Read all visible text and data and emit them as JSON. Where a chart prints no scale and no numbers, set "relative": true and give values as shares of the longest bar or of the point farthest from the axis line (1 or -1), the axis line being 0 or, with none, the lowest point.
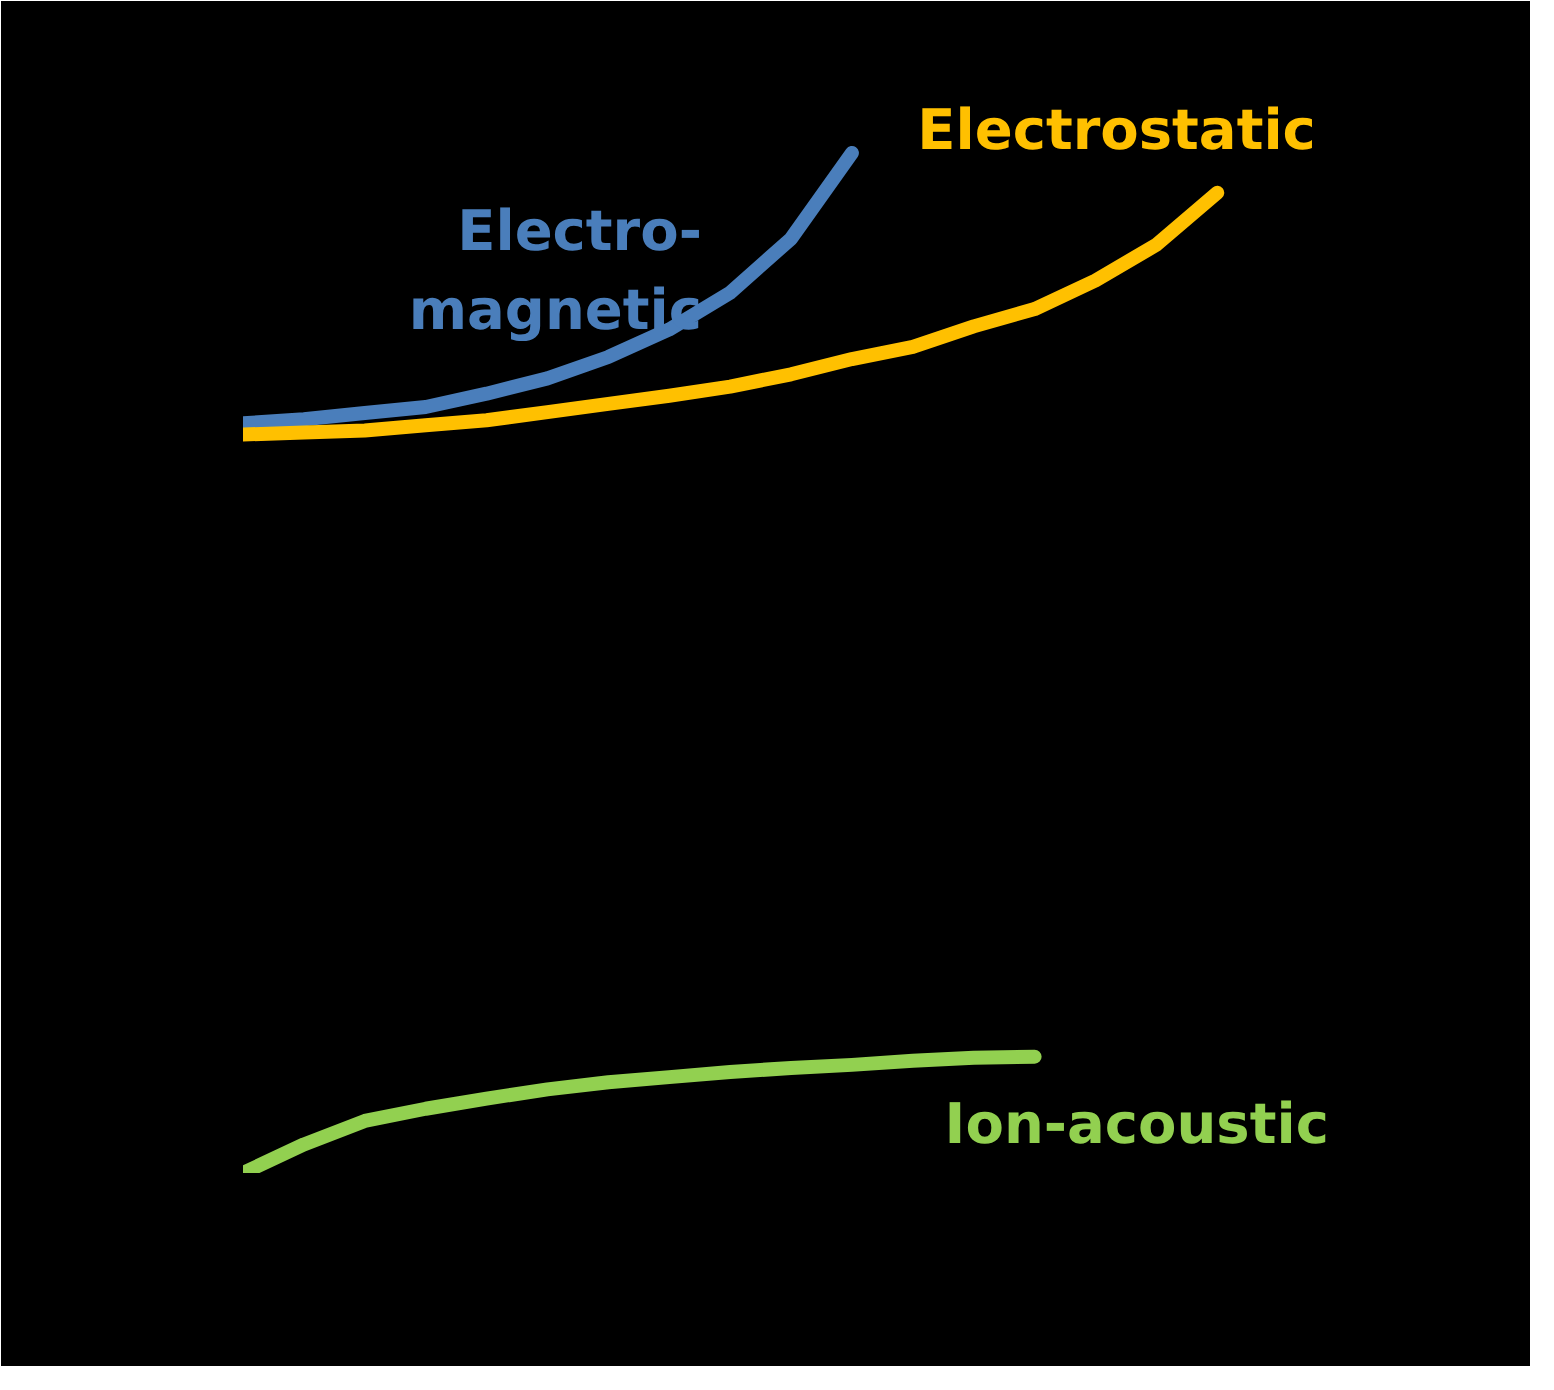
{
  "chart_data": {
    "type": "line",
    "relative": true,
    "line_style": "solid",
    "categories": [
      null,
      null,
      null,
      null,
      null,
      null,
      null,
      null,
      null,
      null,
      null,
      null,
      null,
      null,
      null,
      null,
      null
    ],
    "series": [
      {
        "name": "Electro-\nmagnetic",
        "color": "#4a7ebb",
        "values": [
          0.735,
          0.739,
          0.745,
          0.751,
          0.764,
          0.779,
          0.8,
          0.827,
          0.863,
          0.916,
          1.0,
          null,
          null,
          null,
          null,
          null,
          null
        ]
      },
      {
        "name": "Electrostatic",
        "color": "#ffc000",
        "values": [
          0.724,
          0.726,
          0.728,
          0.733,
          0.738,
          0.746,
          0.754,
          0.762,
          0.771,
          0.783,
          0.798,
          0.81,
          0.83,
          0.847,
          0.875,
          0.91,
          0.961
        ]
      },
      {
        "name": "Ion-acoustic",
        "color": "#92d050",
        "values": [
          0,
          0.028,
          0.051,
          0.063,
          0.073,
          0.082,
          0.089,
          0.094,
          0.099,
          0.103,
          0.106,
          0.11,
          0.113,
          0.114,
          null,
          null,
          null
        ]
      }
    ]
  }
}
